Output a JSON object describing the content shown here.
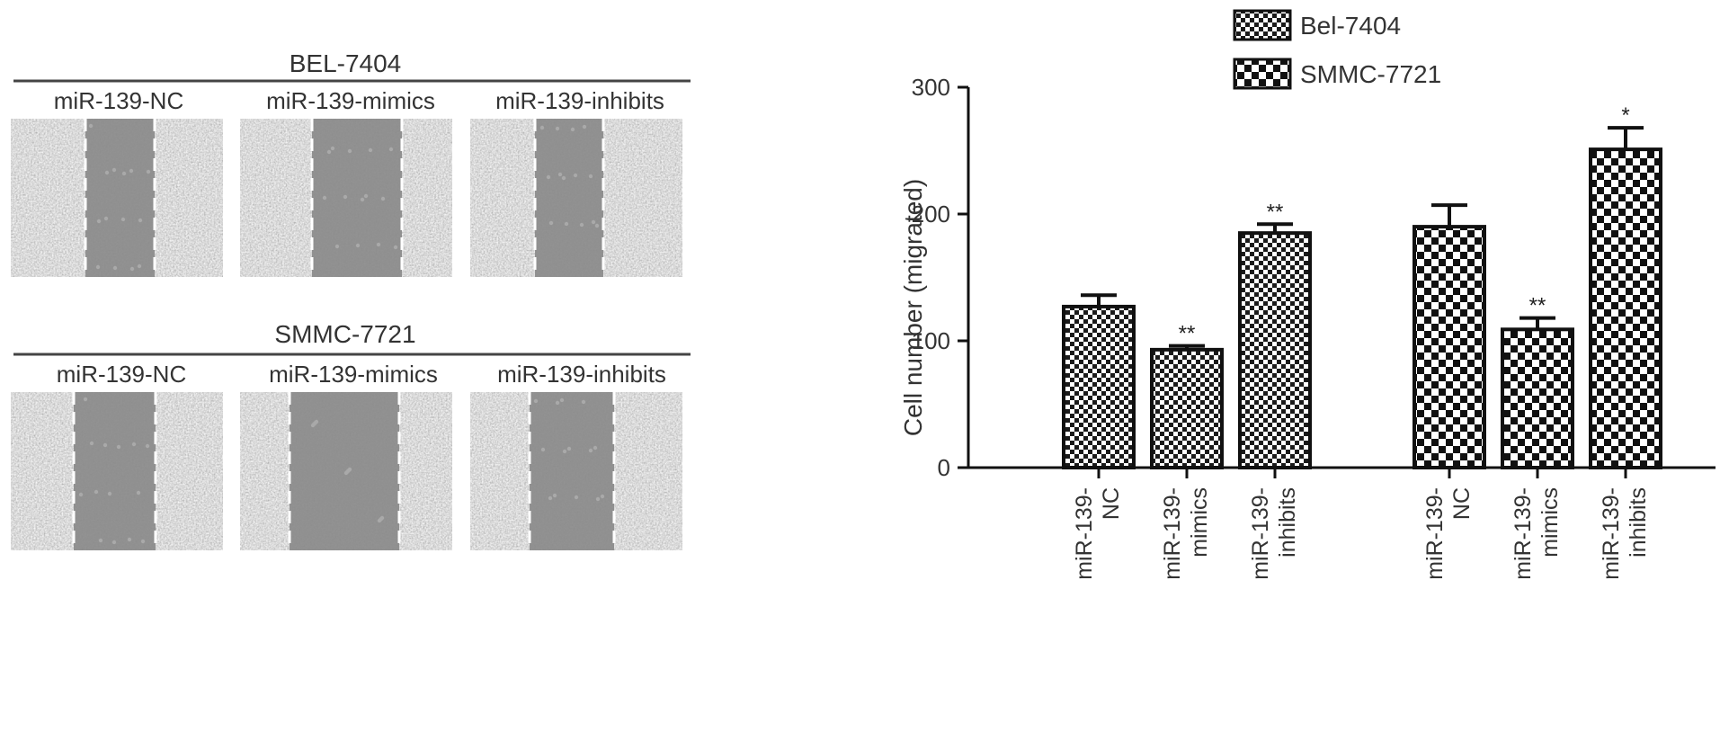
{
  "panels": {
    "groups": [
      {
        "title": "BEL-7404",
        "labels": [
          "miR-139-NC",
          "miR-139-mimics",
          "miR-139-inhibits"
        ]
      },
      {
        "title": "SMMC-7721",
        "labels": [
          "miR-139-NC",
          "miR-139-mimics",
          "miR-139-inhibits"
        ]
      }
    ],
    "colors": {
      "cells": "#bdbdbd",
      "gap": "#8a8a8a",
      "scratch_line": "#ffffff"
    }
  },
  "chart_data": {
    "type": "bar",
    "ylabel": "Cell number (migrated)",
    "ylim": [
      0,
      300
    ],
    "yticks": [
      0,
      100,
      200,
      300
    ],
    "grid": false,
    "legend_position": "top-right",
    "series": [
      {
        "name": "Bel-7404",
        "pattern": "fine-checker",
        "categories": [
          [
            "miR-139-",
            "NC"
          ],
          [
            "miR-139-",
            "mimics"
          ],
          [
            "miR-139-",
            "inhibits"
          ]
        ],
        "values": [
          127,
          93,
          185
        ],
        "errors": [
          9,
          3,
          7
        ],
        "significance": [
          "",
          "**",
          "**"
        ]
      },
      {
        "name": "SMMC-7721",
        "pattern": "coarse-checker",
        "categories": [
          [
            "miR-139-",
            "NC"
          ],
          [
            "miR-139-",
            "mimics"
          ],
          [
            "miR-139-",
            "inhibits"
          ]
        ],
        "values": [
          190,
          109,
          251
        ],
        "errors": [
          17,
          9,
          17
        ],
        "significance": [
          "",
          "**",
          "*"
        ]
      }
    ]
  }
}
